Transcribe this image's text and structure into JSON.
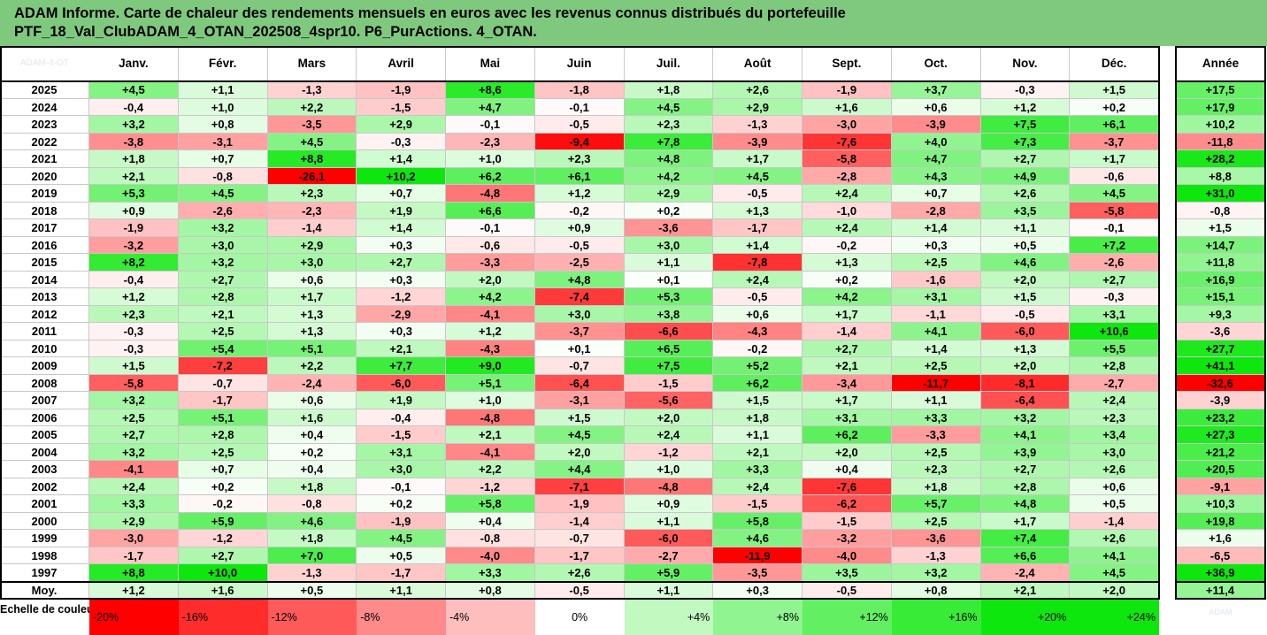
{
  "title": {
    "line1": "ADAM Informe. Carte de chaleur des rendements mensuels en euros avec les revenus connus distribués du portefeuille",
    "line2": "PTF_18_Val_ClubADAM_4_OTAN_202508_4spr10. P6_PurActions. 4_OTAN."
  },
  "corner_text": "ADAM-4-OT",
  "logo_text": "ADAM",
  "chart_data": {
    "type": "heatmap",
    "columns": [
      "Janv.",
      "Févr.",
      "Mars",
      "Avril",
      "Mai",
      "Juin",
      "Juil.",
      "Août",
      "Sept.",
      "Oct.",
      "Nov.",
      "Déc."
    ],
    "year_column": "Année",
    "rows": [
      {
        "year": "2025",
        "values": [
          "+4,5",
          "+1,1",
          "-1,3",
          "-1,9",
          "+8,6",
          "-1,8",
          "+1,8",
          "+2,6",
          "-1,9",
          "+3,7",
          "-0,3",
          "+1,5"
        ],
        "annual": "+17,5"
      },
      {
        "year": "2024",
        "values": [
          "-0,4",
          "+1,0",
          "+2,2",
          "-1,5",
          "+4,7",
          "-0,1",
          "+4,5",
          "+2,9",
          "+1,6",
          "+0,6",
          "+1,2",
          "+0,2"
        ],
        "annual": "+17,9"
      },
      {
        "year": "2023",
        "values": [
          "+3,2",
          "+0,8",
          "-3,5",
          "+2,9",
          "-0,1",
          "-0,5",
          "+2,3",
          "-1,3",
          "-3,0",
          "-3,9",
          "+7,5",
          "+6,1"
        ],
        "annual": "+10,2"
      },
      {
        "year": "2022",
        "values": [
          "-3,8",
          "-3,1",
          "+4,5",
          "-0,3",
          "-2,3",
          "-9,4",
          "+7,8",
          "-3,9",
          "-7,6",
          "+4,0",
          "+7,3",
          "-3,7"
        ],
        "annual": "-11,8"
      },
      {
        "year": "2021",
        "values": [
          "+1,8",
          "+0,7",
          "+8,8",
          "+1,4",
          "+1,0",
          "+2,3",
          "+4,8",
          "+1,7",
          "-5,8",
          "+4,7",
          "+2,7",
          "+1,7"
        ],
        "annual": "+28,2"
      },
      {
        "year": "2020",
        "values": [
          "+2,1",
          "-0,8",
          "-26,1",
          "+10,2",
          "+6,2",
          "+6,1",
          "+4,2",
          "+4,5",
          "-2,8",
          "+4,3",
          "+4,9",
          "-0,6"
        ],
        "annual": "+8,8"
      },
      {
        "year": "2019",
        "values": [
          "+5,3",
          "+4,5",
          "+2,3",
          "+0,7",
          "-4,8",
          "+1,2",
          "+2,9",
          "-0,5",
          "+2,4",
          "+0,7",
          "+2,6",
          "+4,5"
        ],
        "annual": "+31,0"
      },
      {
        "year": "2018",
        "values": [
          "+0,9",
          "-2,6",
          "-2,3",
          "+1,9",
          "+6,6",
          "-0,2",
          "+0,2",
          "+1,3",
          "-1,0",
          "-2,8",
          "+3,5",
          "-5,8"
        ],
        "annual": "-0,8"
      },
      {
        "year": "2017",
        "values": [
          "-1,9",
          "+3,2",
          "-1,4",
          "+1,4",
          "-0,1",
          "+0,9",
          "-3,6",
          "-1,7",
          "+2,4",
          "+1,4",
          "+1,1",
          "-0,1"
        ],
        "annual": "+1,5"
      },
      {
        "year": "2016",
        "values": [
          "-3,2",
          "+3,0",
          "+2,9",
          "+0,3",
          "-0,6",
          "-0,5",
          "+3,0",
          "+1,4",
          "-0,2",
          "+0,3",
          "+0,5",
          "+7,2"
        ],
        "annual": "+14,7"
      },
      {
        "year": "2015",
        "values": [
          "+8,2",
          "+3,2",
          "+3,0",
          "+2,7",
          "-3,3",
          "-2,5",
          "+1,1",
          "-7,8",
          "+1,3",
          "+2,5",
          "+4,6",
          "-2,6"
        ],
        "annual": "+11,8"
      },
      {
        "year": "2014",
        "values": [
          "-0,4",
          "+2,7",
          "+0,6",
          "+0,3",
          "+2,0",
          "+4,8",
          "+0,1",
          "+2,4",
          "+0,2",
          "-1,6",
          "+2,0",
          "+2,7"
        ],
        "annual": "+16,9"
      },
      {
        "year": "2013",
        "values": [
          "+1,2",
          "+2,8",
          "+1,7",
          "-1,2",
          "+4,2",
          "-7,4",
          "+5,3",
          "-0,5",
          "+4,2",
          "+3,1",
          "+1,5",
          "-0,3"
        ],
        "annual": "+15,1"
      },
      {
        "year": "2012",
        "values": [
          "+2,3",
          "+2,1",
          "+1,3",
          "-2,9",
          "-4,1",
          "+3,0",
          "+3,8",
          "+0,6",
          "+1,7",
          "-1,1",
          "-0,5",
          "+3,1"
        ],
        "annual": "+9,3"
      },
      {
        "year": "2011",
        "values": [
          "-0,3",
          "+2,5",
          "+1,3",
          "+0,3",
          "+1,2",
          "-3,7",
          "-6,6",
          "-4,3",
          "-1,4",
          "+4,1",
          "-6,0",
          "+10,6"
        ],
        "annual": "-3,6"
      },
      {
        "year": "2010",
        "values": [
          "-0,3",
          "+5,4",
          "+5,1",
          "+2,1",
          "-4,3",
          "+0,1",
          "+6,5",
          "-0,2",
          "+2,7",
          "+1,4",
          "+1,3",
          "+5,5"
        ],
        "annual": "+27,7"
      },
      {
        "year": "2009",
        "values": [
          "+1,5",
          "-7,2",
          "+2,2",
          "+7,7",
          "+9,0",
          "-0,7",
          "+7,5",
          "+5,2",
          "+2,1",
          "+2,5",
          "+2,0",
          "+2,8"
        ],
        "annual": "+41,1"
      },
      {
        "year": "2008",
        "values": [
          "-5,8",
          "-0,7",
          "-2,4",
          "-6,0",
          "+5,1",
          "-6,4",
          "-1,5",
          "+6,2",
          "-3,4",
          "-11,7",
          "-8,1",
          "-2,7"
        ],
        "annual": "-32,6"
      },
      {
        "year": "2007",
        "values": [
          "+3,2",
          "-1,7",
          "+0,6",
          "+1,9",
          "+1,0",
          "-3,1",
          "-5,6",
          "+1,5",
          "+1,7",
          "+1,1",
          "-6,4",
          "+2,4"
        ],
        "annual": "-3,9"
      },
      {
        "year": "2006",
        "values": [
          "+2,5",
          "+5,1",
          "+1,6",
          "-0,4",
          "-4,8",
          "+1,5",
          "+2,0",
          "+1,8",
          "+3,1",
          "+3,3",
          "+3,2",
          "+2,3"
        ],
        "annual": "+23,2"
      },
      {
        "year": "2005",
        "values": [
          "+2,7",
          "+2,8",
          "+0,4",
          "-1,5",
          "+2,1",
          "+4,5",
          "+2,4",
          "+1,1",
          "+6,2",
          "-3,3",
          "+4,1",
          "+3,4"
        ],
        "annual": "+27,3"
      },
      {
        "year": "2004",
        "values": [
          "+3,2",
          "+2,5",
          "+0,2",
          "+3,1",
          "-4,1",
          "+2,0",
          "-1,2",
          "+2,1",
          "+2,0",
          "+2,5",
          "+3,9",
          "+3,0"
        ],
        "annual": "+21,2"
      },
      {
        "year": "2003",
        "values": [
          "-4,1",
          "+0,7",
          "+0,4",
          "+3,0",
          "+2,2",
          "+4,4",
          "+1,0",
          "+3,3",
          "+0,4",
          "+2,3",
          "+2,7",
          "+2,6"
        ],
        "annual": "+20,5"
      },
      {
        "year": "2002",
        "values": [
          "+2,4",
          "+0,2",
          "+1,8",
          "-0,1",
          "-1,2",
          "-7,1",
          "-4,8",
          "+2,4",
          "-7,6",
          "+1,8",
          "+2,8",
          "+0,6"
        ],
        "annual": "-9,1"
      },
      {
        "year": "2001",
        "values": [
          "+3,3",
          "-0,2",
          "-0,8",
          "+0,2",
          "+5,8",
          "-1,9",
          "+0,9",
          "-1,5",
          "-6,2",
          "+5,7",
          "+4,8",
          "+0,5"
        ],
        "annual": "+10,3"
      },
      {
        "year": "2000",
        "values": [
          "+2,9",
          "+5,9",
          "+4,6",
          "-1,9",
          "+0,4",
          "-1,4",
          "+1,1",
          "+5,8",
          "-1,5",
          "+2,5",
          "+1,7",
          "-1,4"
        ],
        "annual": "+19,8"
      },
      {
        "year": "1999",
        "values": [
          "-3,0",
          "-1,2",
          "+1,8",
          "+4,5",
          "-0,8",
          "-0,7",
          "-6,0",
          "+4,6",
          "-3,2",
          "-3,6",
          "+7,4",
          "+2,6"
        ],
        "annual": "+1,6"
      },
      {
        "year": "1998",
        "values": [
          "-1,7",
          "+2,7",
          "+7,0",
          "+0,5",
          "-4,0",
          "-1,7",
          "-2,7",
          "-11,9",
          "-4,0",
          "-1,3",
          "+6,6",
          "+4,1"
        ],
        "annual": "-6,5"
      },
      {
        "year": "1997",
        "values": [
          "+8,8",
          "+10,0",
          "-1,3",
          "-1,7",
          "+3,3",
          "+2,6",
          "+5,9",
          "-3,5",
          "+3,5",
          "+3,2",
          "-2,4",
          "+4,5"
        ],
        "annual": "+36,9"
      }
    ],
    "average": {
      "label": "Moy.",
      "values": [
        "+1,2",
        "+1,6",
        "+0,5",
        "+1,1",
        "+0,8",
        "-0,5",
        "+1,1",
        "+0,3",
        "-0,5",
        "+0,8",
        "+2,1",
        "+2,0"
      ],
      "annual": "+11,4"
    },
    "scale": {
      "label": "Echelle de couleur",
      "steps": [
        {
          "label": "-20%",
          "value": -20
        },
        {
          "label": "-16%",
          "value": -16
        },
        {
          "label": "-12%",
          "value": -12
        },
        {
          "label": "-8%",
          "value": -8
        },
        {
          "label": "-4%",
          "value": -4
        },
        {
          "label": "0%",
          "value": 0
        },
        {
          "label": "+4%",
          "value": 4
        },
        {
          "label": "+8%",
          "value": 8
        },
        {
          "label": "+12%",
          "value": 12
        },
        {
          "label": "+16%",
          "value": 16
        },
        {
          "label": "+20%",
          "value": 20
        },
        {
          "label": "+24%",
          "value": 24
        }
      ]
    },
    "color_scale": {
      "monthly_max": 10,
      "annual_max": 30,
      "negative_color": "#ff0000",
      "positive_color": "#00e600",
      "neutral_color": "#ffffff"
    }
  }
}
